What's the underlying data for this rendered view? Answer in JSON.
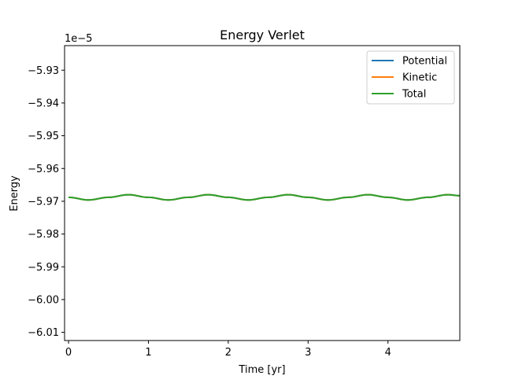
{
  "chart_data": {
    "type": "line",
    "title": "Energy Verlet",
    "xlabel": "Time [yr]",
    "ylabel": "Energy",
    "y_offset_text": "1e−5",
    "xlim": [
      -0.05,
      4.9
    ],
    "ylim": [
      -6.0125,
      -5.9225
    ],
    "xticks": [
      0,
      1,
      2,
      3,
      4
    ],
    "xtick_labels": [
      "0",
      "1",
      "2",
      "3",
      "4"
    ],
    "yticks": [
      -5.93,
      -5.94,
      -5.95,
      -5.96,
      -5.97,
      -5.98,
      -5.99,
      -6.0,
      -6.01
    ],
    "ytick_labels": [
      "−5.93",
      "−5.94",
      "−5.95",
      "−5.96",
      "−5.97",
      "−5.98",
      "−5.99",
      "−6.00",
      "−6.01"
    ],
    "grid": false,
    "legend_position": "top-right",
    "x": [
      0.0,
      0.25,
      0.5,
      0.75,
      1.0,
      1.25,
      1.5,
      1.75,
      2.0,
      2.25,
      2.5,
      2.75,
      3.0,
      3.25,
      3.5,
      3.75,
      4.0,
      4.25,
      4.5,
      4.75,
      4.9
    ],
    "series": [
      {
        "name": "Potential",
        "color": "#1f77b4",
        "values": [
          -5.9688,
          -5.9696,
          -5.9688,
          -5.968,
          -5.9688,
          -5.9696,
          -5.9688,
          -5.968,
          -5.9688,
          -5.9696,
          -5.9688,
          -5.968,
          -5.9688,
          -5.9696,
          -5.9688,
          -5.968,
          -5.9688,
          -5.9696,
          -5.9688,
          -5.968,
          -5.9683
        ]
      },
      {
        "name": "Kinetic",
        "color": "#ff7f0e",
        "values": [
          -5.9688,
          -5.9696,
          -5.9688,
          -5.968,
          -5.9688,
          -5.9696,
          -5.9688,
          -5.968,
          -5.9688,
          -5.9696,
          -5.9688,
          -5.968,
          -5.9688,
          -5.9696,
          -5.9688,
          -5.968,
          -5.9688,
          -5.9696,
          -5.9688,
          -5.968,
          -5.9683
        ]
      },
      {
        "name": "Total",
        "color": "#2ca02c",
        "values": [
          -5.9688,
          -5.9696,
          -5.9688,
          -5.968,
          -5.9688,
          -5.9696,
          -5.9688,
          -5.968,
          -5.9688,
          -5.9696,
          -5.9688,
          -5.968,
          -5.9688,
          -5.9696,
          -5.9688,
          -5.968,
          -5.9688,
          -5.9696,
          -5.9688,
          -5.968,
          -5.9683
        ]
      }
    ]
  }
}
